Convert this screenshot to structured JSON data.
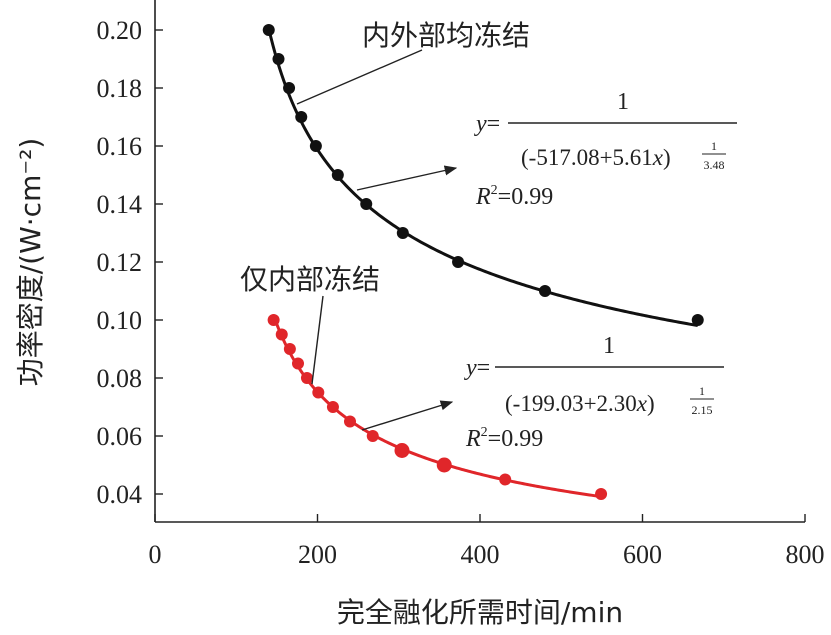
{
  "chart_data": {
    "type": "scatter",
    "xlabel": "完全融化所需时间/min",
    "ylabel": "功率密度/(W·cm⁻²)",
    "xlim": [
      0,
      800
    ],
    "ylim": [
      0.03,
      0.21
    ],
    "xticks": [
      "0",
      "200",
      "400",
      "600",
      "800"
    ],
    "yticks": [
      "0.04",
      "0.06",
      "0.08",
      "0.10",
      "0.12",
      "0.14",
      "0.16",
      "0.18",
      "0.20"
    ],
    "grid": false,
    "series": [
      {
        "name": "内外部均冻结",
        "color": "#111111",
        "points": [
          [
            140,
            0.2
          ],
          [
            152,
            0.19
          ],
          [
            165,
            0.18
          ],
          [
            180,
            0.17
          ],
          [
            198,
            0.16
          ],
          [
            225,
            0.15
          ],
          [
            260,
            0.14
          ],
          [
            305,
            0.13
          ],
          [
            373,
            0.12
          ],
          [
            480,
            0.11
          ],
          [
            668,
            0.1
          ]
        ],
        "fit": {
          "a": -517.08,
          "b": 5.61,
          "n": 3.48,
          "r2": "0.99"
        }
      },
      {
        "name": "仅内部冻结",
        "color": "#e0262a",
        "points": [
          [
            146,
            0.1
          ],
          [
            156,
            0.095
          ],
          [
            166,
            0.09
          ],
          [
            176,
            0.085
          ],
          [
            187,
            0.08
          ],
          [
            201,
            0.075
          ],
          [
            219,
            0.07
          ],
          [
            240,
            0.065
          ],
          [
            268,
            0.06
          ],
          [
            304,
            0.055
          ],
          [
            356,
            0.05
          ],
          [
            431,
            0.045
          ],
          [
            549,
            0.04
          ]
        ],
        "fit": {
          "a": -199.03,
          "b": 2.3,
          "n": 2.15,
          "r2": "0.99"
        }
      }
    ],
    "annotations": {
      "black_label": "内外部均冻结",
      "red_label": "仅内部冻结",
      "black_eq": {
        "lhs": "y=",
        "num": "1",
        "den_base": "(-517.08+5.61x)",
        "exp_num": "1",
        "exp_den": "3.48",
        "r2_label": "R",
        "r2_sup": "2",
        "r2_value": "=0.99"
      },
      "red_eq": {
        "lhs": "y=",
        "num": "1",
        "den_base": "(-199.03+2.30x)",
        "exp_num": "1",
        "exp_den": "2.15",
        "r2_label": "R",
        "r2_sup": "2",
        "r2_value": "=0.99"
      }
    }
  }
}
